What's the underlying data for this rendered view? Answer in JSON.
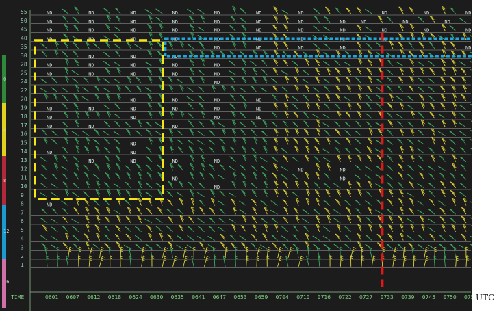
{
  "window": {
    "unit_label": "UTC",
    "time_axis_label": "TIME"
  },
  "colors": {
    "background": "#1c1c1c",
    "gridline": "#bdbdbd",
    "yellow_box": "#f5e61a",
    "blue_box": "#1fa8e0",
    "red_line": "#e01818",
    "barb_green": "#3fa860",
    "barb_yellow": "#d9d23a",
    "barb_red": "#d03a2a"
  },
  "chart_data": {
    "type": "wind-profiler-time-height",
    "x_time_labels": [
      "0601",
      "0607",
      "0612",
      "0618",
      "0624",
      "0630",
      "0635",
      "0641",
      "0647",
      "0653",
      "0659",
      "0704",
      "0710",
      "0716",
      "0722",
      "0727",
      "0733",
      "0739",
      "0745",
      "0750",
      "0756"
    ],
    "y_levels": [
      1,
      2,
      3,
      4,
      5,
      6,
      7,
      8,
      9,
      10,
      11,
      12,
      13,
      14,
      15,
      16,
      17,
      18,
      19,
      20,
      22,
      24,
      25,
      28,
      30,
      35,
      40,
      45,
      50,
      55
    ],
    "no_data_label": "ND",
    "no_data_cells": [
      [
        55,
        0
      ],
      [
        55,
        2
      ],
      [
        55,
        4
      ],
      [
        55,
        6
      ],
      [
        55,
        8
      ],
      [
        55,
        10
      ],
      [
        55,
        12
      ],
      [
        55,
        16
      ],
      [
        55,
        18
      ],
      [
        55,
        20
      ],
      [
        50,
        0
      ],
      [
        50,
        2
      ],
      [
        50,
        4
      ],
      [
        50,
        6
      ],
      [
        50,
        8
      ],
      [
        50,
        10
      ],
      [
        50,
        12
      ],
      [
        50,
        14
      ],
      [
        50,
        15
      ],
      [
        50,
        17
      ],
      [
        50,
        19
      ],
      [
        45,
        0
      ],
      [
        45,
        2
      ],
      [
        45,
        4
      ],
      [
        45,
        6
      ],
      [
        45,
        8
      ],
      [
        45,
        10
      ],
      [
        45,
        12
      ],
      [
        45,
        14
      ],
      [
        45,
        16
      ],
      [
        45,
        18
      ],
      [
        45,
        20
      ],
      [
        40,
        0
      ],
      [
        40,
        2
      ],
      [
        40,
        4
      ],
      [
        40,
        6
      ],
      [
        40,
        8
      ],
      [
        40,
        10
      ],
      [
        40,
        12
      ],
      [
        40,
        14
      ],
      [
        40,
        16
      ],
      [
        35,
        8
      ],
      [
        35,
        10
      ],
      [
        35,
        12
      ],
      [
        35,
        14
      ],
      [
        35,
        20
      ],
      [
        30,
        2
      ],
      [
        30,
        4
      ],
      [
        30,
        6
      ],
      [
        28,
        0
      ],
      [
        28,
        2
      ],
      [
        28,
        4
      ],
      [
        28,
        6
      ],
      [
        28,
        8
      ],
      [
        25,
        0
      ],
      [
        25,
        2
      ],
      [
        25,
        4
      ],
      [
        25,
        6
      ],
      [
        25,
        8
      ],
      [
        24,
        8
      ],
      [
        20,
        4
      ],
      [
        20,
        6
      ],
      [
        20,
        8
      ],
      [
        20,
        10
      ],
      [
        19,
        0
      ],
      [
        19,
        2
      ],
      [
        19,
        4
      ],
      [
        19,
        6
      ],
      [
        19,
        8
      ],
      [
        19,
        10
      ],
      [
        18,
        0
      ],
      [
        18,
        4
      ],
      [
        18,
        8
      ],
      [
        18,
        10
      ],
      [
        17,
        0
      ],
      [
        17,
        2
      ],
      [
        17,
        6
      ],
      [
        15,
        4
      ],
      [
        14,
        0
      ],
      [
        14,
        4
      ],
      [
        13,
        2
      ],
      [
        13,
        4
      ],
      [
        13,
        6
      ],
      [
        13,
        8
      ],
      [
        12,
        12
      ],
      [
        12,
        14
      ],
      [
        11,
        6
      ],
      [
        11,
        14
      ],
      [
        10,
        8
      ],
      [
        8,
        0
      ]
    ],
    "annotations": {
      "yellow_box": {
        "from_time": "0601",
        "to_time": "0630",
        "from_level": 9,
        "to_level": 35
      },
      "blue_box": {
        "from_time": "0635",
        "to_time": "0756",
        "from_level": 30,
        "to_level": 40
      },
      "red_line": {
        "time": "0733"
      }
    },
    "side_scale_labels": [
      "0",
      "4",
      "8",
      "12",
      "16"
    ]
  }
}
